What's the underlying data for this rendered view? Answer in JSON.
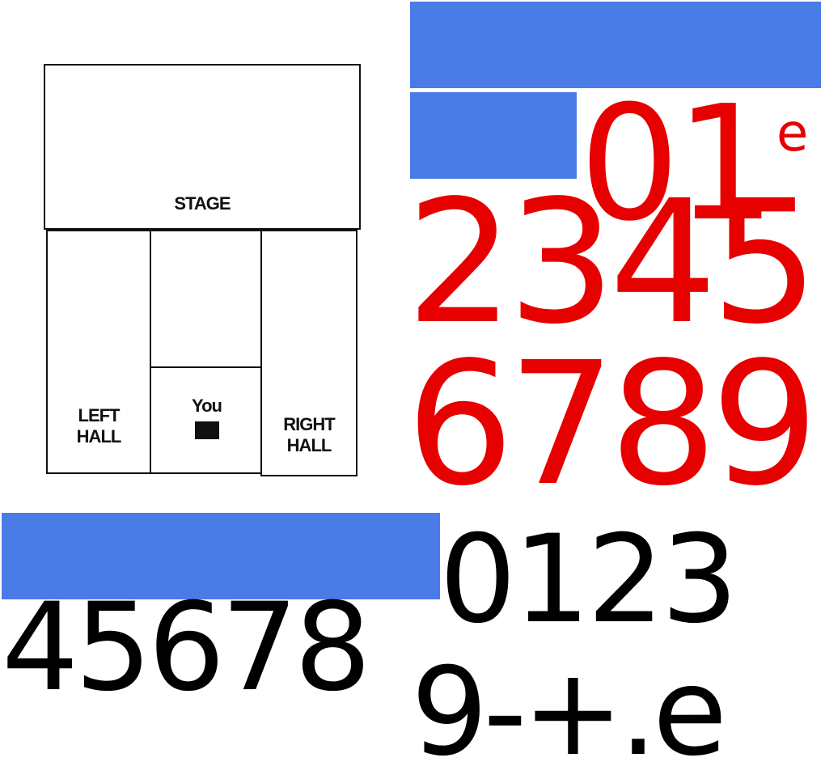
{
  "floor_plan": {
    "stage_label": "STAGE",
    "left_hall_label": [
      "LEFT",
      "HALL"
    ],
    "right_hall_label": [
      "RIGHT",
      "HALL"
    ],
    "you_label": "You"
  },
  "red_glyphs": {
    "line1": "01",
    "line1_suffix": "e",
    "line2": "2345",
    "line3": "6789",
    "color": "#e60000"
  },
  "black_glyphs": {
    "line1": "0123",
    "line2": "45678",
    "line3": "9-+.e",
    "color": "#000000"
  },
  "accent_color": "#4a7be6"
}
